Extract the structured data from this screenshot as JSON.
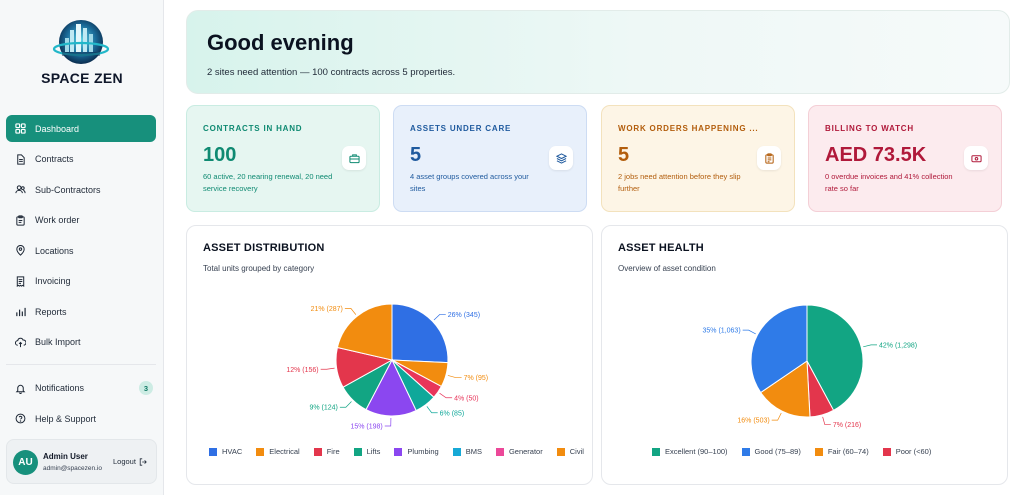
{
  "app": {
    "logo_text": "SPACE ZEN"
  },
  "sidebar": {
    "items": [
      {
        "label": "Dashboard",
        "icon": "dashboard-icon",
        "active": true
      },
      {
        "label": "Contracts",
        "icon": "document-icon"
      },
      {
        "label": "Sub-Contractors",
        "icon": "users-icon"
      },
      {
        "label": "Work order",
        "icon": "clipboard-icon"
      },
      {
        "label": "Locations",
        "icon": "location-pin-icon"
      },
      {
        "label": "Invoicing",
        "icon": "receipt-icon"
      },
      {
        "label": "Reports",
        "icon": "bar-chart-icon"
      },
      {
        "label": "Bulk Import",
        "icon": "upload-cloud-icon"
      }
    ],
    "bottom_items": [
      {
        "label": "Notifications",
        "icon": "bell-icon",
        "badge": "3"
      },
      {
        "label": "Help & Support",
        "icon": "help-circle-icon"
      }
    ],
    "user": {
      "initials": "AU",
      "name": "Admin User",
      "email": "admin@spacezen.io",
      "logout_label": "Logout"
    }
  },
  "greeting": {
    "title": "Good evening",
    "subtitle": "2 sites need attention — 100 contracts across 5 properties."
  },
  "stats": [
    {
      "title": "CONTRACTS IN HAND",
      "value": "100",
      "desc": "60 active, 20 nearing renewal, 20 need service recovery",
      "icon": "briefcase-icon",
      "color": "#0f8a72"
    },
    {
      "title": "ASSETS UNDER CARE",
      "value": "5",
      "desc": "4 asset groups covered across your sites",
      "icon": "layers-icon",
      "color": "#1f5a9e"
    },
    {
      "title": "WORK ORDERS HAPPENING ...",
      "value": "5",
      "desc": "2 jobs need attention before they slip further",
      "icon": "clipboard-list-icon",
      "color": "#b25d0c"
    },
    {
      "title": "BILLING TO WATCH",
      "value": "AED 73.5K",
      "desc": "0 overdue invoices and 41% collection rate so far",
      "icon": "banknote-icon",
      "color": "#b0193a"
    }
  ],
  "chart_data": [
    {
      "type": "pie",
      "title": "ASSET DISTRIBUTION",
      "subtitle": "Total units grouped by category",
      "slices": [
        {
          "name": "HVAC",
          "value": 345,
          "label": "26% (345)",
          "color": "#2f6fe4"
        },
        {
          "name": "Electrical",
          "value": 95,
          "label": "7% (95)",
          "color": "#f28c0f"
        },
        {
          "name": "Fire",
          "value": 50,
          "label": "4% (50)",
          "color": "#e8355a"
        },
        {
          "name": "Lifts",
          "value": 85,
          "label": "6% (85)",
          "color": "#0fa89a"
        },
        {
          "name": "Plumbing",
          "value": 198,
          "label": "15% (198)",
          "color": "#8b47f0"
        },
        {
          "name": "BMS",
          "value": 124,
          "label": "9% (124)",
          "color": "#12a583"
        },
        {
          "name": "Generator",
          "value": 156,
          "label": "12% (156)",
          "color": "#e3364c"
        },
        {
          "name": "Civil",
          "value": 287,
          "label": "21% (287)",
          "color": "#f28c0f"
        }
      ],
      "legend": [
        {
          "name": "HVAC",
          "color": "#2f6fe4"
        },
        {
          "name": "Electrical",
          "color": "#f28c0f"
        },
        {
          "name": "Fire",
          "color": "#e3364c"
        },
        {
          "name": "Lifts",
          "color": "#12a583"
        },
        {
          "name": "Plumbing",
          "color": "#8b47f0"
        },
        {
          "name": "BMS",
          "color": "#17a9d6"
        },
        {
          "name": "Generator",
          "color": "#ec4899"
        },
        {
          "name": "Civil",
          "color": "#f28c0f"
        }
      ]
    },
    {
      "type": "pie",
      "title": "ASSET HEALTH",
      "subtitle": "Overview of asset condition",
      "slices": [
        {
          "name": "Excellent (90–100)",
          "value": 1298,
          "label": "42% (1,298)",
          "color": "#12a583"
        },
        {
          "name": "Poor (<60)",
          "value": 216,
          "label": "7% (216)",
          "color": "#e3364c"
        },
        {
          "name": "Fair (60–74)",
          "value": 503,
          "label": "16% (503)",
          "color": "#f28c0f"
        },
        {
          "name": "Good (75–89)",
          "value": 1063,
          "label": "35% (1,063)",
          "color": "#2f7be8"
        }
      ],
      "legend": [
        {
          "name": "Excellent (90–100)",
          "color": "#12a583"
        },
        {
          "name": "Good (75–89)",
          "color": "#2f7be8"
        },
        {
          "name": "Fair (60–74)",
          "color": "#f28c0f"
        },
        {
          "name": "Poor (<60)",
          "color": "#e3364c"
        }
      ]
    }
  ]
}
